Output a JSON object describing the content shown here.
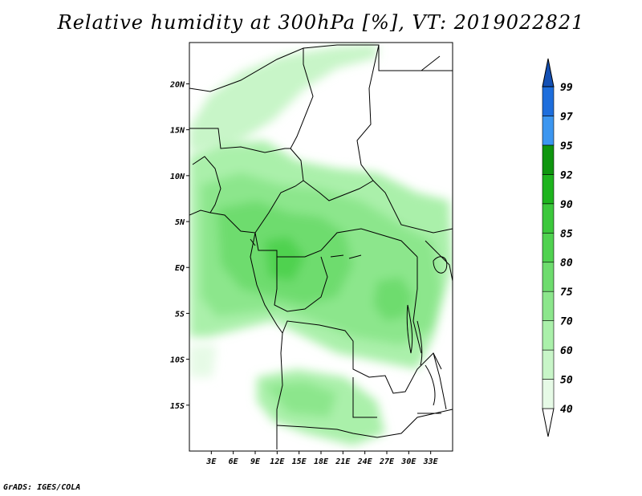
{
  "title": "Relative humidity at 300hPa [%], VT: 2019022821",
  "credit": "GrADS: IGES/COLA",
  "map": {
    "lon_range": [
      0,
      36
    ],
    "lat_range": [
      -20,
      24.5
    ],
    "lat_ticks": [
      {
        "value": 20,
        "label": "20N"
      },
      {
        "value": 15,
        "label": "15N"
      },
      {
        "value": 10,
        "label": "10N"
      },
      {
        "value": 5,
        "label": "5N"
      },
      {
        "value": 0,
        "label": "EQ"
      },
      {
        "value": -5,
        "label": "5S"
      },
      {
        "value": -10,
        "label": "10S"
      },
      {
        "value": -15,
        "label": "15S"
      }
    ],
    "lon_ticks": [
      {
        "value": 3,
        "label": "3E"
      },
      {
        "value": 6,
        "label": "6E"
      },
      {
        "value": 9,
        "label": "9E"
      },
      {
        "value": 12,
        "label": "12E"
      },
      {
        "value": 15,
        "label": "15E"
      },
      {
        "value": 18,
        "label": "18E"
      },
      {
        "value": 21,
        "label": "21E"
      },
      {
        "value": 24,
        "label": "24E"
      },
      {
        "value": 27,
        "label": "27E"
      },
      {
        "value": 30,
        "label": "30E"
      },
      {
        "value": 33,
        "label": "33E"
      }
    ]
  },
  "colorbar": {
    "levels": [
      {
        "label": "40",
        "color": "#e6fae6"
      },
      {
        "label": "50",
        "color": "#c8f5c8"
      },
      {
        "label": "60",
        "color": "#aaf0aa"
      },
      {
        "label": "70",
        "color": "#8ce68c"
      },
      {
        "label": "75",
        "color": "#6edc6e"
      },
      {
        "label": "80",
        "color": "#50d250"
      },
      {
        "label": "85",
        "color": "#3cc83c"
      },
      {
        "label": "90",
        "color": "#1eb41e"
      },
      {
        "label": "92",
        "color": "#0f960f"
      },
      {
        "label": "95",
        "color": "#3c96f0"
      },
      {
        "label": "97",
        "color": "#1e6edc"
      },
      {
        "label": "99",
        "color": "#1450b4"
      }
    ],
    "under_color": "#ffffff",
    "over_color": "#1450b4"
  }
}
